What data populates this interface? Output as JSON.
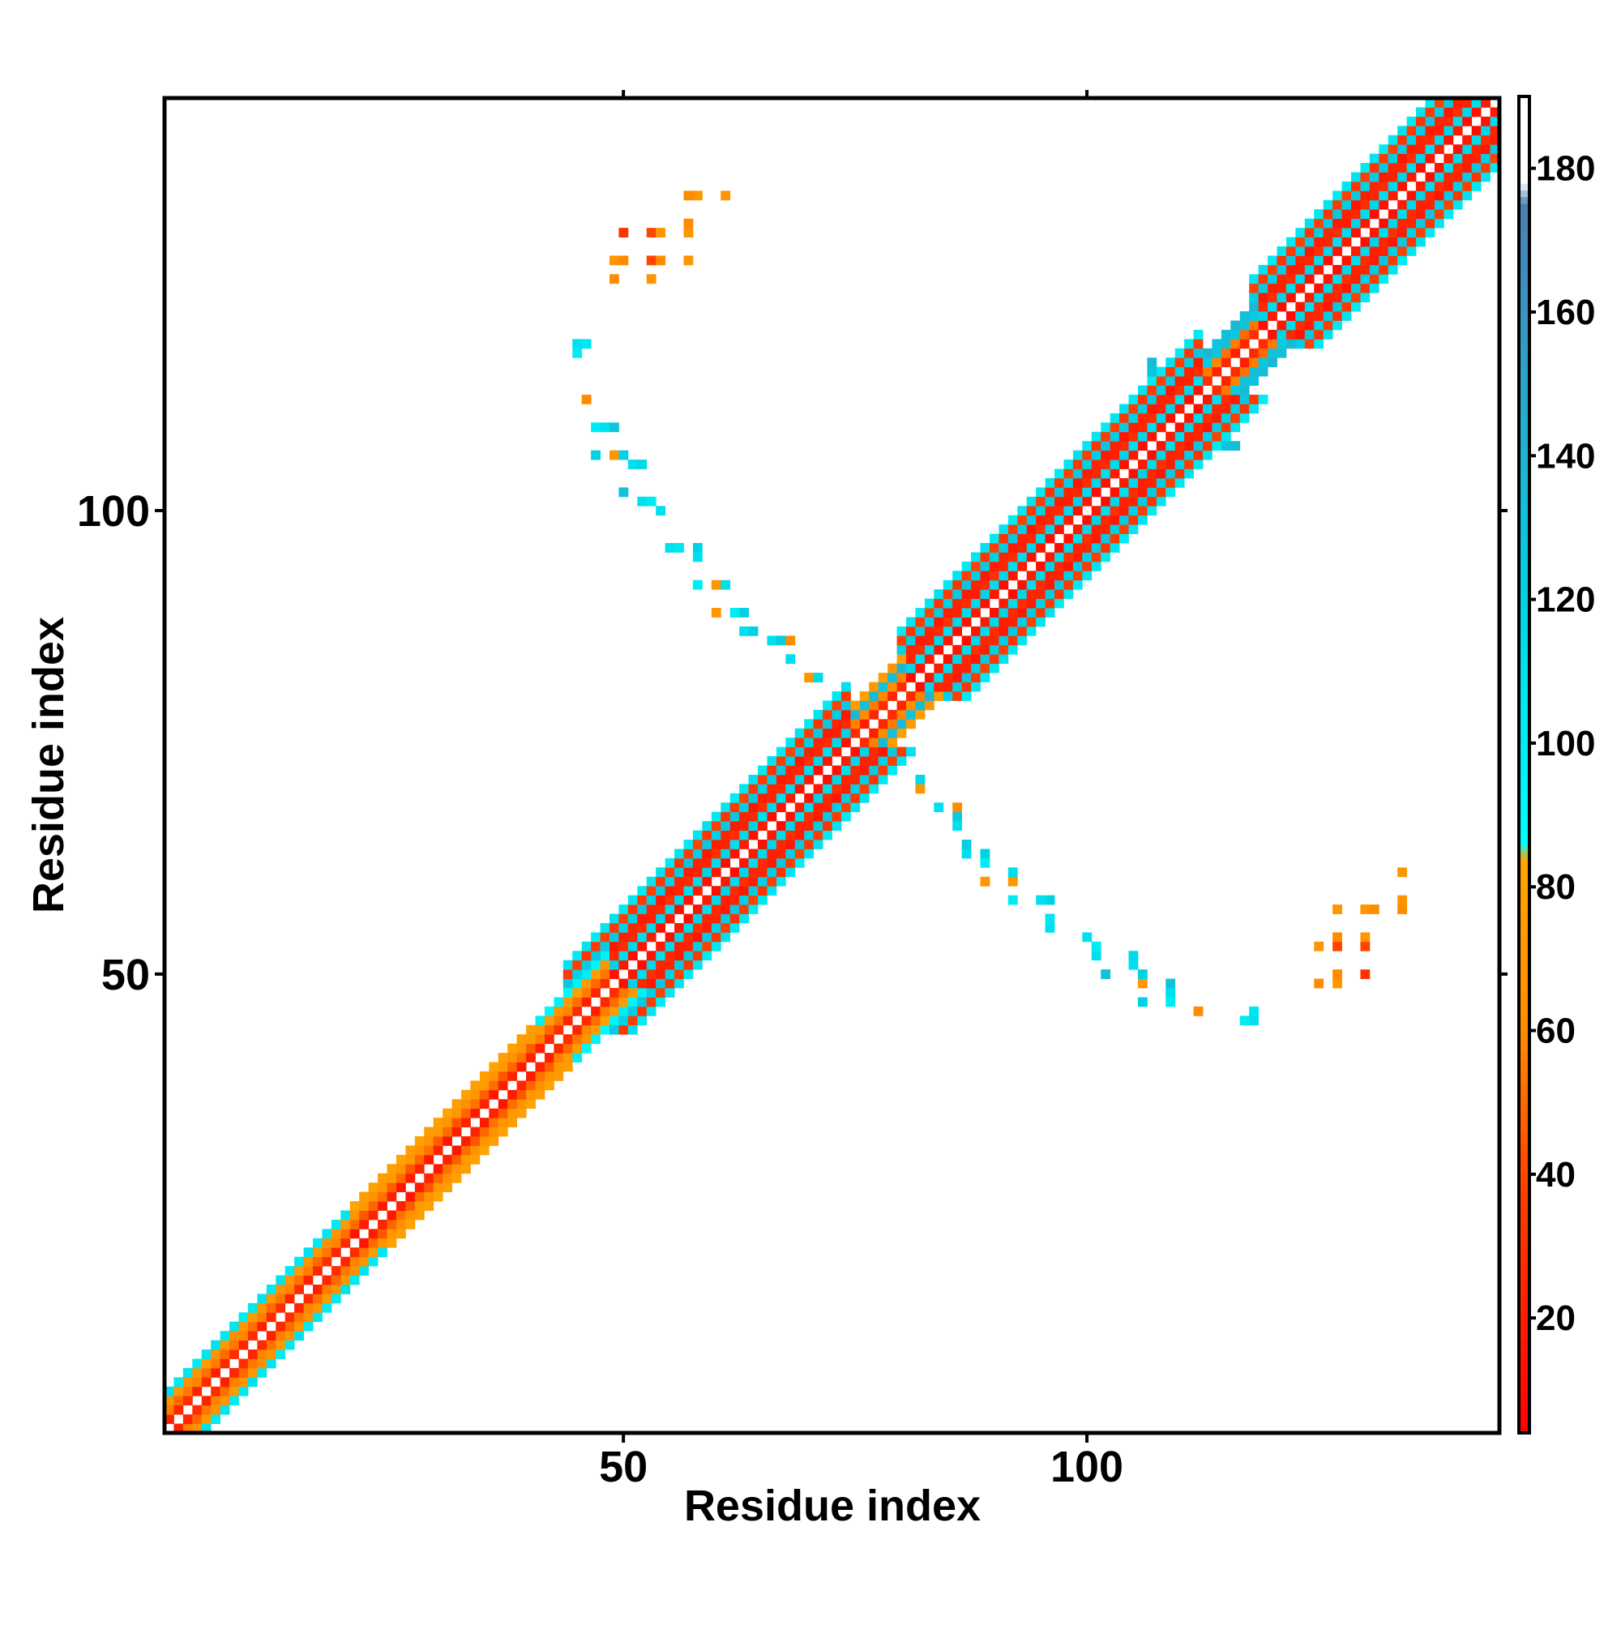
{
  "chart_data": {
    "type": "heatmap",
    "title": "",
    "xlabel": "Residue index",
    "ylabel": "Residue index",
    "xlim": [
      1,
      144
    ],
    "ylim": [
      1,
      144
    ],
    "x_ticks": [
      50,
      100
    ],
    "y_ticks": [
      50,
      100
    ],
    "colorbar": {
      "range": [
        4,
        190
      ],
      "ticks": [
        20,
        40,
        60,
        80,
        100,
        120,
        140,
        160,
        180
      ],
      "stops": [
        {
          "value": 4,
          "color": "#ff0000"
        },
        {
          "value": 40,
          "color": "#ff4500"
        },
        {
          "value": 60,
          "color": "#ff8c00"
        },
        {
          "value": 84,
          "color": "#ffa500"
        },
        {
          "value": 86,
          "color": "#00ffff"
        },
        {
          "value": 120,
          "color": "#00d2e6"
        },
        {
          "value": 140,
          "color": "#1eb4d2"
        },
        {
          "value": 175,
          "color": "#4a7fb5"
        },
        {
          "value": 178,
          "color": "#ffffff"
        },
        {
          "value": 190,
          "color": "#ffffff"
        }
      ]
    },
    "grid": false,
    "legend": "colorbar-right",
    "symmetric": true,
    "diagonal_band": [
      {
        "from": 1,
        "to": 20,
        "offsets": [
          [
            1,
            20
          ],
          [
            2,
            50
          ],
          [
            3,
            65
          ],
          [
            4,
            100
          ]
        ]
      },
      {
        "from": 20,
        "to": 40,
        "offsets": [
          [
            1,
            15
          ],
          [
            2,
            45
          ],
          [
            3,
            65
          ],
          [
            4,
            75
          ]
        ]
      },
      {
        "from": 40,
        "to": 48,
        "offsets": [
          [
            1,
            20
          ],
          [
            2,
            50
          ],
          [
            3,
            70
          ],
          [
            4,
            90
          ]
        ]
      },
      {
        "from": 44,
        "to": 74,
        "offsets": [
          [
            1,
            10
          ],
          [
            2,
            110
          ],
          [
            3,
            20
          ],
          [
            4,
            15
          ],
          [
            5,
            120
          ],
          [
            6,
            30
          ],
          [
            7,
            100
          ]
        ]
      },
      {
        "from": 74,
        "to": 80,
        "offsets": [
          [
            1,
            20
          ],
          [
            2,
            55
          ],
          [
            3,
            130
          ],
          [
            4,
            70
          ]
        ]
      },
      {
        "from": 80,
        "to": 112,
        "offsets": [
          [
            1,
            10
          ],
          [
            2,
            110
          ],
          [
            3,
            20
          ],
          [
            4,
            15
          ],
          [
            5,
            120
          ],
          [
            6,
            30
          ],
          [
            7,
            100
          ]
        ]
      },
      {
        "from": 112,
        "to": 118,
        "offsets": [
          [
            1,
            20
          ],
          [
            2,
            50
          ],
          [
            3,
            125
          ],
          [
            4,
            130
          ]
        ]
      },
      {
        "from": 118,
        "to": 144,
        "offsets": [
          [
            1,
            10
          ],
          [
            2,
            110
          ],
          [
            3,
            20
          ],
          [
            4,
            15
          ],
          [
            5,
            120
          ],
          [
            6,
            30
          ],
          [
            7,
            100
          ]
        ]
      }
    ],
    "contacts": [
      {
        "x": 45,
        "y": 118,
        "v": 110
      },
      {
        "x": 46,
        "y": 118,
        "v": 105
      },
      {
        "x": 45,
        "y": 117,
        "v": 100
      },
      {
        "x": 46,
        "y": 112,
        "v": 60
      },
      {
        "x": 47,
        "y": 109,
        "v": 100
      },
      {
        "x": 48,
        "y": 109,
        "v": 110
      },
      {
        "x": 49,
        "y": 109,
        "v": 130
      },
      {
        "x": 47,
        "y": 106,
        "v": 120
      },
      {
        "x": 49,
        "y": 106,
        "v": 70
      },
      {
        "x": 50,
        "y": 106,
        "v": 120
      },
      {
        "x": 51,
        "y": 105,
        "v": 110
      },
      {
        "x": 52,
        "y": 105,
        "v": 115
      },
      {
        "x": 50,
        "y": 102,
        "v": 130
      },
      {
        "x": 52,
        "y": 101,
        "v": 110
      },
      {
        "x": 53,
        "y": 101,
        "v": 100
      },
      {
        "x": 54,
        "y": 100,
        "v": 110
      },
      {
        "x": 55,
        "y": 96,
        "v": 110
      },
      {
        "x": 56,
        "y": 96,
        "v": 105
      },
      {
        "x": 58,
        "y": 96,
        "v": 120
      },
      {
        "x": 58,
        "y": 95,
        "v": 110
      },
      {
        "x": 58,
        "y": 92,
        "v": 100
      },
      {
        "x": 60,
        "y": 92,
        "v": 70
      },
      {
        "x": 61,
        "y": 92,
        "v": 110
      },
      {
        "x": 60,
        "y": 89,
        "v": 70
      },
      {
        "x": 62,
        "y": 89,
        "v": 100
      },
      {
        "x": 63,
        "y": 89,
        "v": 120
      },
      {
        "x": 63,
        "y": 87,
        "v": 110
      },
      {
        "x": 64,
        "y": 87,
        "v": 120
      },
      {
        "x": 66,
        "y": 86,
        "v": 110
      },
      {
        "x": 67,
        "y": 86,
        "v": 125
      },
      {
        "x": 68,
        "y": 86,
        "v": 60
      },
      {
        "x": 68,
        "y": 84,
        "v": 110
      },
      {
        "x": 70,
        "y": 82,
        "v": 70
      },
      {
        "x": 71,
        "y": 82,
        "v": 115
      },
      {
        "x": 50,
        "y": 130,
        "v": 30
      },
      {
        "x": 53,
        "y": 130,
        "v": 40
      },
      {
        "x": 54,
        "y": 130,
        "v": 70
      },
      {
        "x": 57,
        "y": 130,
        "v": 70
      },
      {
        "x": 57,
        "y": 131,
        "v": 60
      },
      {
        "x": 49,
        "y": 127,
        "v": 70
      },
      {
        "x": 50,
        "y": 127,
        "v": 60
      },
      {
        "x": 53,
        "y": 127,
        "v": 40
      },
      {
        "x": 54,
        "y": 127,
        "v": 60
      },
      {
        "x": 57,
        "y": 127,
        "v": 70
      },
      {
        "x": 49,
        "y": 125,
        "v": 60
      },
      {
        "x": 53,
        "y": 125,
        "v": 70
      },
      {
        "x": 57,
        "y": 134,
        "v": 60
      },
      {
        "x": 58,
        "y": 134,
        "v": 70
      },
      {
        "x": 61,
        "y": 134,
        "v": 70
      },
      {
        "x": 116,
        "y": 120,
        "v": 10
      },
      {
        "x": 117,
        "y": 121,
        "v": 20
      },
      {
        "x": 118,
        "y": 122,
        "v": 15
      },
      {
        "x": 113,
        "y": 116,
        "v": 25
      },
      {
        "x": 114,
        "y": 115,
        "v": 30
      },
      {
        "x": 115,
        "y": 114,
        "v": 20
      },
      {
        "x": 108,
        "y": 115,
        "v": 110
      },
      {
        "x": 110,
        "y": 116,
        "v": 130
      },
      {
        "x": 111,
        "y": 115,
        "v": 120
      },
      {
        "x": 112,
        "y": 114,
        "v": 100
      },
      {
        "x": 110,
        "y": 114,
        "v": 70
      },
      {
        "x": 109,
        "y": 113,
        "v": 60
      },
      {
        "x": 115,
        "y": 110,
        "v": 110
      },
      {
        "x": 116,
        "y": 110,
        "v": 100
      },
      {
        "x": 114,
        "y": 109,
        "v": 120
      },
      {
        "x": 115,
        "y": 107,
        "v": 130
      },
      {
        "x": 116,
        "y": 107,
        "v": 135
      }
    ]
  }
}
